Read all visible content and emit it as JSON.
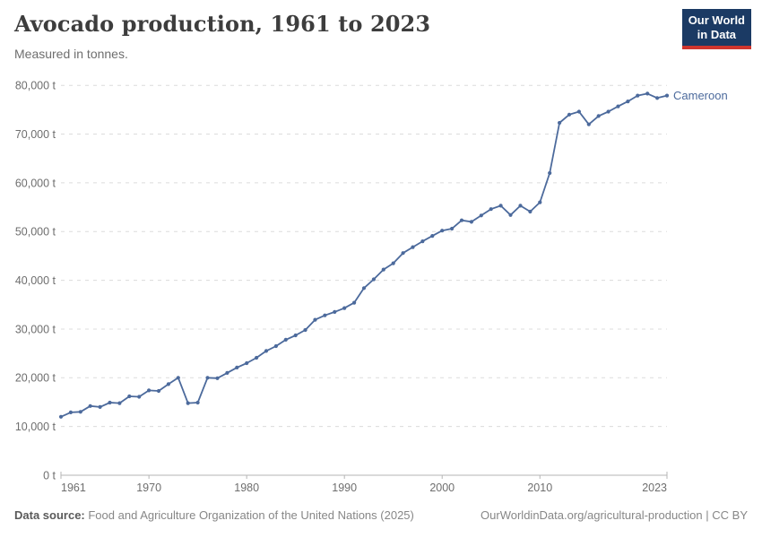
{
  "header": {
    "title": "Avocado production, 1961 to 2023",
    "subtitle": "Measured in tonnes."
  },
  "logo": {
    "line1": "Our World",
    "line2": "in Data"
  },
  "footer": {
    "source_label": "Data source:",
    "source_text": " Food and Agriculture Organization of the United Nations (2025)",
    "right_link": "OurWorldinData.org/agricultural-production",
    "right_suffix": " | CC BY"
  },
  "chart_data": {
    "type": "line",
    "title": "Avocado production, 1961 to 2023",
    "subtitle": "Measured in tonnes.",
    "entity": "Cameroon",
    "unit": "tonnes",
    "xlim": [
      1961,
      2023
    ],
    "ylim": [
      0,
      80000
    ],
    "grid": true,
    "legend_position": "end-of-line",
    "line_color": "#4c6a9c",
    "grid_color": "#dcdcdc",
    "axis_color": "#b5b5b5",
    "tick_label_color": "#6e6e6e",
    "years": [
      1961,
      1962,
      1963,
      1964,
      1965,
      1966,
      1967,
      1968,
      1969,
      1970,
      1971,
      1972,
      1973,
      1974,
      1975,
      1976,
      1977,
      1978,
      1979,
      1980,
      1981,
      1982,
      1983,
      1984,
      1985,
      1986,
      1987,
      1988,
      1989,
      1990,
      1991,
      1992,
      1993,
      1994,
      1995,
      1996,
      1997,
      1998,
      1999,
      2000,
      2001,
      2002,
      2003,
      2004,
      2005,
      2006,
      2007,
      2008,
      2009,
      2010,
      2011,
      2012,
      2013,
      2014,
      2015,
      2016,
      2017,
      2018,
      2019,
      2020,
      2021,
      2022,
      2023
    ],
    "values": [
      12000,
      12900,
      13000,
      14200,
      14000,
      14900,
      14800,
      16200,
      16100,
      17400,
      17300,
      18700,
      20000,
      14800,
      14900,
      20000,
      19900,
      21000,
      22100,
      23000,
      24100,
      25500,
      26500,
      27800,
      28700,
      29800,
      31900,
      32800,
      33500,
      34300,
      35400,
      38400,
      40200,
      42200,
      43500,
      45600,
      46800,
      48000,
      49100,
      50200,
      50600,
      52300,
      52000,
      53300,
      54600,
      55300,
      53400,
      55300,
      54100,
      56000,
      62000,
      72300,
      74000,
      74600,
      72000,
      73700,
      74600,
      75700,
      76700,
      77900,
      78300,
      77400,
      77900
    ],
    "y_ticks": [
      {
        "value": 0,
        "label": "0 t"
      },
      {
        "value": 10000,
        "label": "10,000 t"
      },
      {
        "value": 20000,
        "label": "20,000 t"
      },
      {
        "value": 30000,
        "label": "30,000 t"
      },
      {
        "value": 40000,
        "label": "40,000 t"
      },
      {
        "value": 50000,
        "label": "50,000 t"
      },
      {
        "value": 60000,
        "label": "60,000 t"
      },
      {
        "value": 70000,
        "label": "70,000 t"
      },
      {
        "value": 80000,
        "label": "80,000 t"
      }
    ],
    "x_ticks": [
      {
        "year": 1961,
        "label": "1961",
        "align": "start"
      },
      {
        "year": 1970,
        "label": "1970",
        "align": "middle"
      },
      {
        "year": 1980,
        "label": "1980",
        "align": "middle"
      },
      {
        "year": 1990,
        "label": "1990",
        "align": "middle"
      },
      {
        "year": 2000,
        "label": "2000",
        "align": "middle"
      },
      {
        "year": 2010,
        "label": "2010",
        "align": "middle"
      },
      {
        "year": 2023,
        "label": "2023",
        "align": "end"
      }
    ]
  }
}
